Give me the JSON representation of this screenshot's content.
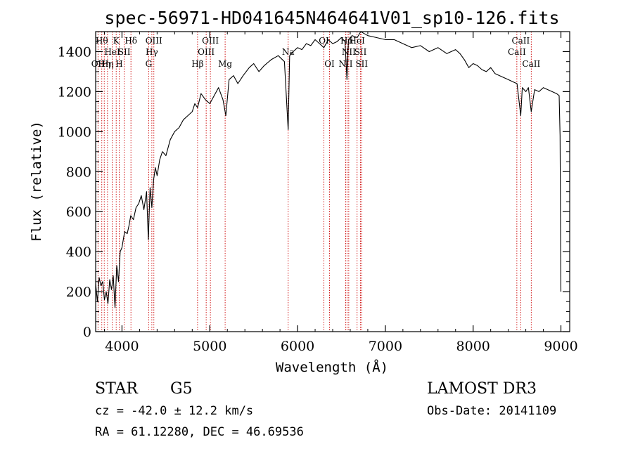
{
  "chart_data": {
    "type": "line",
    "title": "spec-56971-HD041645N464641V01_sp10-126.fits",
    "xlabel": "Wavelength (Å)",
    "ylabel": "Flux (relative)",
    "xlim": [
      3700,
      9100
    ],
    "ylim": [
      0,
      1500
    ],
    "x_ticks": [
      4000,
      5000,
      6000,
      7000,
      8000,
      9000
    ],
    "x_tick_labels": [
      "4000",
      "5000",
      "6000",
      "7000",
      "8000",
      "9000"
    ],
    "y_ticks": [
      0,
      200,
      400,
      600,
      800,
      1000,
      1200,
      1400
    ],
    "y_tick_labels": [
      "0",
      "200",
      "400",
      "600",
      "800",
      "1000",
      "1200",
      "1400"
    ],
    "series": [
      {
        "name": "flux",
        "x": [
          3700,
          3720,
          3740,
          3760,
          3780,
          3800,
          3820,
          3840,
          3860,
          3880,
          3900,
          3920,
          3940,
          3960,
          3980,
          4000,
          4030,
          4060,
          4080,
          4100,
          4130,
          4160,
          4190,
          4220,
          4250,
          4280,
          4300,
          4320,
          4340,
          4360,
          4380,
          4400,
          4430,
          4460,
          4500,
          4550,
          4600,
          4650,
          4700,
          4750,
          4800,
          4830,
          4861,
          4900,
          4950,
          5000,
          5050,
          5100,
          5150,
          5183,
          5220,
          5270,
          5320,
          5380,
          5450,
          5500,
          5560,
          5620,
          5700,
          5780,
          5850,
          5893,
          5910,
          5950,
          6000,
          6050,
          6100,
          6150,
          6200,
          6250,
          6300,
          6350,
          6400,
          6450,
          6500,
          6540,
          6563,
          6580,
          6620,
          6680,
          6720,
          6760,
          6800,
          6900,
          7000,
          7100,
          7200,
          7300,
          7400,
          7500,
          7600,
          7700,
          7800,
          7850,
          7900,
          7950,
          8000,
          8050,
          8100,
          8150,
          8200,
          8250,
          8300,
          8400,
          8450,
          8500,
          8542,
          8560,
          8600,
          8630,
          8662,
          8700,
          8750,
          8800,
          8850,
          8900,
          8950,
          8980,
          8990,
          9000
        ],
        "values": [
          240,
          150,
          270,
          230,
          250,
          160,
          200,
          140,
          260,
          210,
          280,
          120,
          330,
          250,
          400,
          420,
          500,
          490,
          530,
          580,
          560,
          620,
          640,
          680,
          610,
          700,
          460,
          720,
          620,
          760,
          820,
          780,
          860,
          900,
          880,
          960,
          1000,
          1020,
          1060,
          1080,
          1100,
          1140,
          1120,
          1190,
          1160,
          1140,
          1180,
          1220,
          1160,
          1080,
          1260,
          1280,
          1240,
          1280,
          1320,
          1340,
          1300,
          1330,
          1360,
          1380,
          1350,
          1010,
          1380,
          1400,
          1420,
          1410,
          1440,
          1430,
          1460,
          1440,
          1420,
          1460,
          1440,
          1450,
          1470,
          1450,
          1260,
          1460,
          1480,
          1470,
          1500,
          1490,
          1480,
          1470,
          1460,
          1460,
          1440,
          1420,
          1430,
          1400,
          1420,
          1390,
          1410,
          1390,
          1360,
          1320,
          1340,
          1330,
          1310,
          1300,
          1320,
          1290,
          1280,
          1260,
          1250,
          1240,
          1080,
          1220,
          1200,
          1220,
          1100,
          1210,
          1200,
          1220,
          1210,
          1200,
          1190,
          1180,
          980,
          200
        ]
      }
    ],
    "line_markers": [
      {
        "x": 3727,
        "label": "OII",
        "row": 2
      },
      {
        "x": 3770,
        "label": "Hθ",
        "row": 0
      },
      {
        "x": 3798,
        "label": "Hη",
        "row": 2
      },
      {
        "x": 3835,
        "label": "Hη",
        "row": 2
      },
      {
        "x": 3889,
        "label": "HeI",
        "row": 1
      },
      {
        "x": 3934,
        "label": "K",
        "row": 0
      },
      {
        "x": 3968,
        "label": "H",
        "row": 2
      },
      {
        "x": 4026,
        "label": "SII",
        "row": 1
      },
      {
        "x": 4102,
        "label": "Hδ",
        "row": 0
      },
      {
        "x": 4304,
        "label": "G",
        "row": 2
      },
      {
        "x": 4340,
        "label": "Hγ",
        "row": 1
      },
      {
        "x": 4363,
        "label": "OIII",
        "row": 0
      },
      {
        "x": 4861,
        "label": "Hβ",
        "row": 2
      },
      {
        "x": 4959,
        "label": "OIII",
        "row": 1
      },
      {
        "x": 5007,
        "label": "OIII",
        "row": 0
      },
      {
        "x": 5175,
        "label": "Mg",
        "row": 2
      },
      {
        "x": 5893,
        "label": "Na",
        "row": 1
      },
      {
        "x": 6300,
        "label": "OI",
        "row": 0
      },
      {
        "x": 6364,
        "label": "OI",
        "row": 2
      },
      {
        "x": 6548,
        "label": "NII",
        "row": 2
      },
      {
        "x": 6563,
        "label": "Hα",
        "row": 0
      },
      {
        "x": 6583,
        "label": "NII",
        "row": 1
      },
      {
        "x": 6678,
        "label": "HeI",
        "row": 0
      },
      {
        "x": 6717,
        "label": "SII",
        "row": 1
      },
      {
        "x": 6731,
        "label": "SII",
        "row": 2
      },
      {
        "x": 8498,
        "label": "CaII",
        "row": 1
      },
      {
        "x": 8542,
        "label": "CaII",
        "row": 0
      },
      {
        "x": 8662,
        "label": "CaII",
        "row": 2
      }
    ]
  },
  "info": {
    "object_class": "STAR",
    "subclass": "G5",
    "survey": "LAMOST DR3",
    "cz": "cz = -42.0 ± 12.2 km/s",
    "obs_date": "Obs-Date: 20141109",
    "coords": "RA =  61.12280, DEC =  46.69536"
  },
  "colors": {
    "line": "#000000",
    "markers": "#cc0000",
    "axes": "#000000"
  }
}
